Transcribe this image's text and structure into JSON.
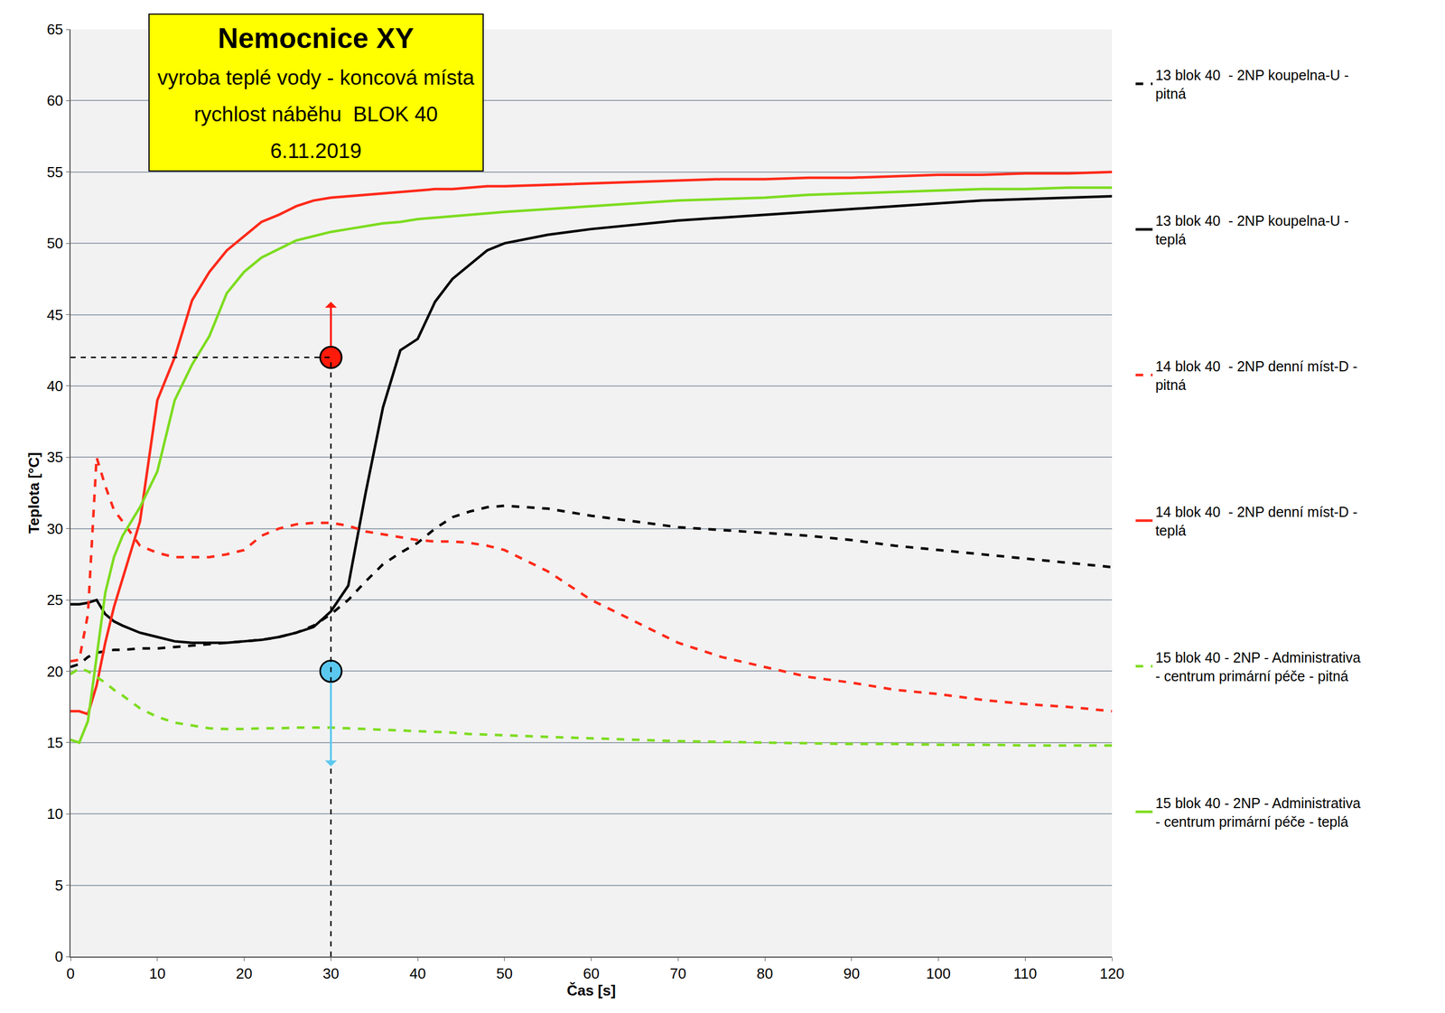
{
  "chart_data": {
    "type": "line",
    "title": "Nemocnice XY",
    "subtitle": [
      "vyroba teplé vody - koncová místa",
      "rychlost náběhu  BLOK 40",
      "6.11.2019"
    ],
    "x_label": "Čas [s]",
    "y_label": "Teplota [°C]",
    "x": [
      0,
      1,
      2,
      3,
      4,
      5,
      6,
      8,
      10,
      12,
      14,
      16,
      18,
      20,
      22,
      24,
      26,
      28,
      30,
      32,
      34,
      36,
      38,
      40,
      42,
      44,
      46,
      48,
      50,
      55,
      60,
      65,
      70,
      75,
      80,
      85,
      90,
      95,
      100,
      105,
      110,
      115,
      120
    ],
    "series": [
      {
        "name": "13 blok 40  - 2NP koupelna-U - pitná",
        "color": "#000000",
        "line_style": "dash",
        "values": [
          20.3,
          20.5,
          21,
          21.3,
          21.4,
          21.5,
          21.5,
          21.6,
          21.6,
          21.7,
          21.8,
          21.9,
          22,
          22.1,
          22.2,
          22.4,
          22.7,
          23.2,
          24,
          25,
          26.3,
          27.5,
          28.3,
          29,
          30,
          30.8,
          31.2,
          31.5,
          31.6,
          31.4,
          30.9,
          30.5,
          30.1,
          29.9,
          29.7,
          29.5,
          29.2,
          28.8,
          28.5,
          28.2,
          27.9,
          27.6,
          27.3
        ]
      },
      {
        "name": "13 blok 40  - 2NP koupelna-U - teplá",
        "color": "#000000",
        "line_style": "solid",
        "values": [
          24.7,
          24.7,
          24.8,
          25,
          24,
          23.5,
          23.2,
          22.7,
          22.4,
          22.1,
          22,
          22,
          22,
          22.1,
          22.2,
          22.4,
          22.7,
          23.1,
          24.2,
          26,
          32.5,
          38.5,
          42.5,
          43.3,
          45.9,
          47.5,
          48.5,
          49.5,
          50,
          50.6,
          51,
          51.3,
          51.6,
          51.8,
          52,
          52.2,
          52.4,
          52.6,
          52.8,
          53,
          53.1,
          53.2,
          53.3
        ]
      },
      {
        "name": "14 blok 40  - 2NP denní míst-D - pitná",
        "color": "#ff2a1a",
        "line_style": "dash",
        "values": [
          20.7,
          20.8,
          24,
          35,
          33,
          31.3,
          30.5,
          28.8,
          28.3,
          28,
          28,
          28,
          28.2,
          28.5,
          29.5,
          30,
          30.3,
          30.4,
          30.4,
          30.2,
          29.8,
          29.6,
          29.4,
          29.2,
          29.1,
          29.1,
          29,
          28.8,
          28.5,
          27,
          25,
          23.5,
          22,
          21,
          20.3,
          19.6,
          19.2,
          18.7,
          18.4,
          18,
          17.7,
          17.5,
          17.2
        ]
      },
      {
        "name": "14 blok 40  - 2NP denní míst-D - teplá",
        "color": "#ff2a1a",
        "line_style": "solid",
        "values": [
          17.2,
          17.2,
          17,
          19,
          22,
          24.5,
          26.5,
          30.5,
          39,
          42,
          46,
          48,
          49.5,
          50.5,
          51.5,
          52,
          52.6,
          53,
          53.2,
          53.3,
          53.4,
          53.5,
          53.6,
          53.7,
          53.8,
          53.8,
          53.9,
          54,
          54,
          54.1,
          54.2,
          54.3,
          54.4,
          54.5,
          54.5,
          54.6,
          54.6,
          54.7,
          54.8,
          54.8,
          54.9,
          54.9,
          55
        ]
      },
      {
        "name": "15 blok 40 - 2NP - Administrativa - centrum primární péče - pitná",
        "color": "#7ddc1f",
        "line_style": "dash",
        "values": [
          19.8,
          20.2,
          20,
          19.6,
          19.2,
          18.7,
          18.3,
          17.4,
          16.8,
          16.4,
          16.2,
          16,
          15.95,
          15.95,
          16,
          16,
          16.05,
          16.05,
          16.05,
          16,
          15.95,
          15.9,
          15.85,
          15.8,
          15.75,
          15.7,
          15.6,
          15.55,
          15.5,
          15.4,
          15.3,
          15.2,
          15.1,
          15.05,
          15,
          14.95,
          14.9,
          14.9,
          14.85,
          14.85,
          14.8,
          14.8,
          14.8
        ]
      },
      {
        "name": "15 blok 40 - 2NP - Administrativa - centrum primární péče - teplá",
        "color": "#7ddc1f",
        "line_style": "solid",
        "values": [
          15.2,
          15,
          16.5,
          21,
          25.5,
          28,
          29.5,
          31.5,
          34,
          39,
          41.5,
          43.5,
          46.5,
          48,
          49,
          49.6,
          50.2,
          50.5,
          50.8,
          51,
          51.2,
          51.4,
          51.5,
          51.7,
          51.8,
          51.9,
          52,
          52.1,
          52.2,
          52.4,
          52.6,
          52.8,
          53,
          53.1,
          53.2,
          53.4,
          53.5,
          53.6,
          53.7,
          53.8,
          53.8,
          53.9,
          53.9
        ]
      }
    ],
    "markers": [
      {
        "x": 30,
        "y": 42,
        "color": "#ff1a0a",
        "arrow": "up"
      },
      {
        "x": 30,
        "y": 20,
        "color": "#5bc8f0",
        "arrow": "down"
      }
    ],
    "guide": {
      "x": 30,
      "y": 42
    },
    "xlim": [
      0,
      120
    ],
    "xticks": [
      0,
      10,
      20,
      30,
      40,
      50,
      60,
      70,
      80,
      90,
      100,
      110,
      120
    ],
    "ylim": [
      0,
      65
    ],
    "yticks": [
      0,
      5,
      10,
      15,
      20,
      25,
      30,
      35,
      40,
      45,
      50,
      55,
      60,
      65
    ],
    "grid": "y",
    "legend": "right"
  }
}
